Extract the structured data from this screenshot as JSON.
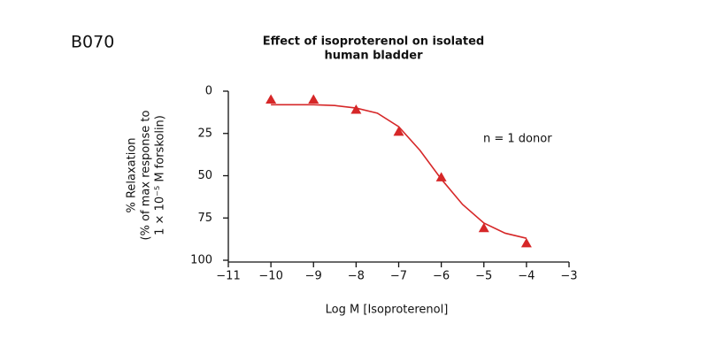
{
  "label": "B070",
  "chart_data": {
    "type": "scatter",
    "title": [
      "Effect of isoproterenol on isolated",
      "human bladder"
    ],
    "x_label": "Log M [Isoproterenol]",
    "y_label": [
      "% Relaxation",
      "(% of max response to",
      "1 × 10⁻⁵ M forskolin)"
    ],
    "annotation": "n = 1 donor",
    "x": [
      -10,
      -9,
      -8,
      -7,
      -6,
      -5,
      -4
    ],
    "series": [
      {
        "color": "#d62728",
        "marker": "triangle",
        "values": [
          5,
          5,
          11,
          24,
          51,
          81,
          90
        ]
      },
      {
        "color": "#d62728",
        "marker": "line",
        "x": [
          -10,
          -9.5,
          -9,
          -8.5,
          -8,
          -7.5,
          -7,
          -6.5,
          -6,
          -5.5,
          -5,
          -4.5,
          -4
        ],
        "values": [
          8,
          8,
          8,
          8.5,
          10,
          13,
          21,
          35,
          52,
          67,
          78,
          84,
          87
        ]
      }
    ],
    "xlim": [
      -11,
      -3
    ],
    "xticks": [
      {
        "value": -11,
        "label": "−11"
      },
      {
        "value": -10,
        "label": "−10"
      },
      {
        "value": -9,
        "label": "−9"
      },
      {
        "value": -8,
        "label": "−8"
      },
      {
        "value": -7,
        "label": "−7"
      },
      {
        "value": -6,
        "label": "−6"
      },
      {
        "value": -5,
        "label": "−5"
      },
      {
        "value": -4,
        "label": "−4"
      },
      {
        "value": -3,
        "label": "−3"
      }
    ],
    "ylim": [
      0,
      100
    ],
    "yticks": [
      0,
      25,
      50,
      75,
      100
    ],
    "y_inverted": true,
    "grid": false
  }
}
